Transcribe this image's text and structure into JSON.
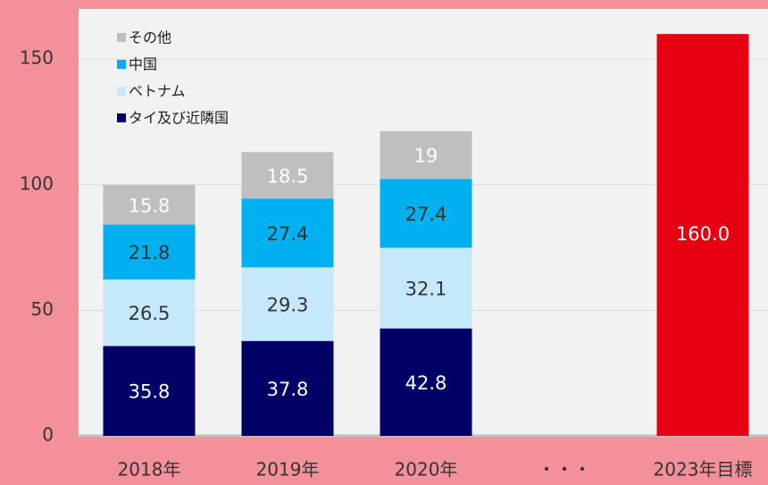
{
  "chart_data": {
    "type": "stacked_bar",
    "categories": [
      "2018年",
      "2019年",
      "2020年",
      "・・・",
      "2023年目標"
    ],
    "series": [
      {
        "name": "タイ及び近隣国",
        "color": "#000066",
        "label_color": "#ffffff",
        "values": [
          35.8,
          37.8,
          42.8,
          null,
          null
        ]
      },
      {
        "name": "ベトナム",
        "color": "#c5e8fa",
        "label_color": "#333333",
        "values": [
          26.5,
          29.3,
          32.1,
          null,
          null
        ]
      },
      {
        "name": "中国",
        "color": "#00b0f0",
        "label_color": "#333333",
        "values": [
          21.8,
          27.4,
          27.4,
          null,
          null
        ]
      },
      {
        "name": "その他",
        "color": "#bfbfbf",
        "label_color": "#ffffff",
        "values": [
          15.8,
          18.5,
          19.0,
          null,
          null
        ]
      }
    ],
    "target": {
      "category": 4,
      "value": 160,
      "value_label": "160.0",
      "color": "#e60012",
      "label_color": "#ffffff"
    },
    "ylim": [
      0,
      170
    ],
    "yticks": [
      0,
      50,
      100,
      150
    ],
    "grid": true,
    "legend": "top-left"
  }
}
